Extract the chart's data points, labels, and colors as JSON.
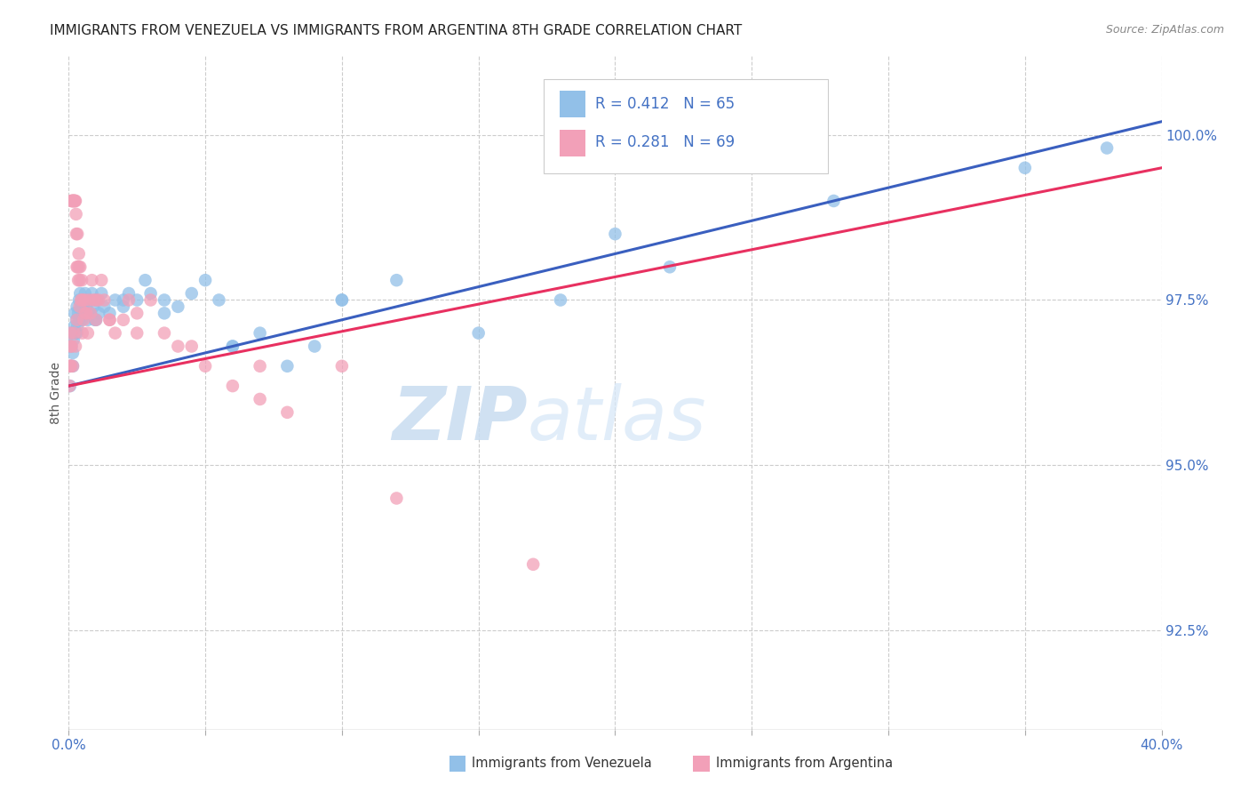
{
  "title": "IMMIGRANTS FROM VENEZUELA VS IMMIGRANTS FROM ARGENTINA 8TH GRADE CORRELATION CHART",
  "source": "Source: ZipAtlas.com",
  "ylabel": "8th Grade",
  "right_yticks": [
    92.5,
    95.0,
    97.5,
    100.0
  ],
  "xmin": 0.0,
  "xmax": 40.0,
  "ymin": 91.0,
  "ymax": 101.2,
  "color_venezuela": "#92C0E8",
  "color_argentina": "#F2A0B8",
  "line_color_venezuela": "#3A5FBF",
  "line_color_argentina": "#E83060",
  "R_venezuela": 0.412,
  "N_venezuela": 65,
  "R_argentina": 0.281,
  "N_argentina": 69,
  "legend_label_venezuela": "Immigrants from Venezuela",
  "legend_label_argentina": "Immigrants from Argentina",
  "watermark_zip": "ZIP",
  "watermark_atlas": "atlas",
  "ven_x": [
    0.05,
    0.08,
    0.1,
    0.12,
    0.15,
    0.18,
    0.2,
    0.22,
    0.25,
    0.28,
    0.3,
    0.32,
    0.35,
    0.38,
    0.4,
    0.42,
    0.45,
    0.48,
    0.5,
    0.55,
    0.6,
    0.65,
    0.7,
    0.75,
    0.8,
    0.85,
    0.9,
    0.95,
    1.0,
    1.1,
    1.2,
    1.3,
    1.5,
    1.7,
    2.0,
    2.2,
    2.5,
    2.8,
    3.0,
    3.5,
    4.0,
    4.5,
    5.0,
    5.5,
    6.0,
    7.0,
    8.0,
    9.0,
    10.0,
    12.0,
    15.0,
    18.0,
    22.0,
    28.0,
    35.0,
    38.0,
    0.15,
    0.3,
    0.5,
    1.0,
    2.0,
    3.5,
    6.0,
    10.0,
    20.0
  ],
  "ven_y": [
    96.2,
    96.5,
    96.8,
    97.0,
    96.7,
    96.9,
    97.1,
    97.3,
    97.0,
    97.2,
    97.4,
    97.1,
    97.3,
    97.5,
    97.2,
    97.6,
    97.4,
    97.2,
    97.5,
    97.3,
    97.6,
    97.4,
    97.2,
    97.5,
    97.3,
    97.6,
    97.4,
    97.2,
    97.5,
    97.3,
    97.6,
    97.4,
    97.3,
    97.5,
    97.4,
    97.6,
    97.5,
    97.8,
    97.6,
    97.5,
    97.4,
    97.6,
    97.8,
    97.5,
    96.8,
    97.0,
    96.5,
    96.8,
    97.5,
    97.8,
    97.0,
    97.5,
    98.0,
    99.0,
    99.5,
    99.8,
    96.5,
    97.0,
    97.4,
    97.2,
    97.5,
    97.3,
    96.8,
    97.5,
    98.5
  ],
  "arg_x": [
    0.03,
    0.05,
    0.07,
    0.08,
    0.1,
    0.12,
    0.13,
    0.15,
    0.17,
    0.18,
    0.2,
    0.22,
    0.23,
    0.25,
    0.27,
    0.28,
    0.3,
    0.32,
    0.33,
    0.35,
    0.37,
    0.38,
    0.4,
    0.42,
    0.45,
    0.48,
    0.5,
    0.55,
    0.6,
    0.65,
    0.7,
    0.75,
    0.8,
    0.85,
    0.9,
    1.0,
    1.1,
    1.2,
    1.3,
    1.5,
    1.7,
    2.0,
    2.2,
    2.5,
    3.0,
    3.5,
    4.0,
    5.0,
    6.0,
    7.0,
    8.0,
    10.0,
    0.1,
    0.2,
    0.3,
    0.4,
    0.6,
    1.0,
    1.5,
    2.5,
    4.5,
    7.0,
    12.0,
    17.0,
    0.05,
    0.08,
    0.15,
    0.25,
    0.5
  ],
  "arg_y": [
    96.2,
    96.5,
    97.0,
    96.8,
    99.0,
    99.0,
    99.0,
    99.0,
    99.0,
    99.0,
    99.0,
    99.0,
    99.0,
    99.0,
    98.8,
    98.5,
    98.0,
    98.5,
    98.0,
    97.8,
    98.2,
    98.0,
    97.8,
    98.0,
    97.5,
    97.8,
    97.5,
    97.2,
    97.5,
    97.3,
    97.0,
    97.5,
    97.3,
    97.8,
    97.5,
    97.2,
    97.5,
    97.8,
    97.5,
    97.2,
    97.0,
    97.2,
    97.5,
    97.3,
    97.5,
    97.0,
    96.8,
    96.5,
    96.2,
    96.0,
    95.8,
    96.5,
    96.8,
    97.0,
    97.2,
    97.4,
    97.3,
    97.5,
    97.2,
    97.0,
    96.8,
    96.5,
    94.5,
    93.5,
    96.5,
    96.5,
    96.5,
    96.8,
    97.0
  ]
}
